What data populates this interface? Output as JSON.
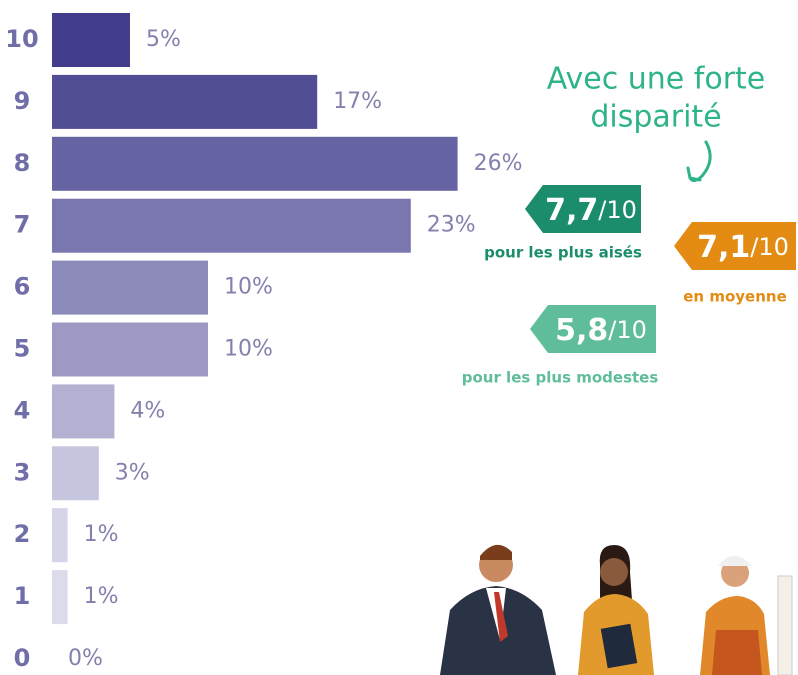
{
  "chart_data": {
    "type": "bar",
    "orientation": "horizontal",
    "categories": [
      "10",
      "9",
      "8",
      "7",
      "6",
      "5",
      "4",
      "3",
      "2",
      "1",
      "0"
    ],
    "values": [
      5,
      17,
      26,
      23,
      10,
      10,
      4,
      3,
      1,
      1,
      0
    ],
    "value_labels": [
      "5%",
      "17%",
      "26%",
      "23%",
      "10%",
      "10%",
      "4%",
      "3%",
      "1%",
      "1%",
      "0%"
    ],
    "colors": [
      "#433e8c",
      "#524e96",
      "#6764a3",
      "#7a77ae",
      "#8c8ab9",
      "#9c9ac3",
      "#b2b1d2",
      "#c6c5de",
      "#d5d4e8",
      "#dcdbec",
      "#e3e2f0"
    ],
    "annotation": [
      "Avec une forte",
      "disparité"
    ],
    "badges": [
      {
        "value": "7,7",
        "scale": "/10",
        "caption": "pour les plus aisés",
        "color": "#1b8d6c"
      },
      {
        "value": "7,1",
        "scale": "/10",
        "caption": "en moyenne",
        "color": "#e38b12"
      },
      {
        "value": "5,8",
        "scale": "/10",
        "caption": "pour les plus modestes",
        "color": "#5fbd99"
      }
    ]
  }
}
